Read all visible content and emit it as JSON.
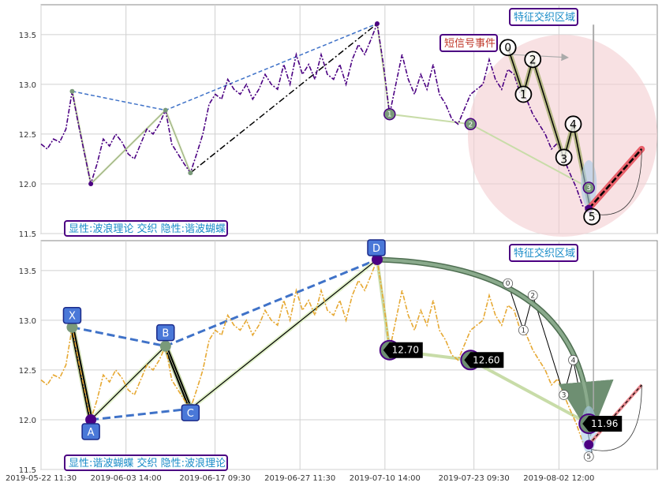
{
  "chart_data": {
    "type": "line",
    "x_tick_labels": [
      "2019-05-22 11:30",
      "2019-06-03 14:00",
      "2019-06-17 09:30",
      "2019-06-27 11:30",
      "2019-07-10 14:00",
      "2019-07-23 09:30",
      "2019-08-02 12:00"
    ],
    "ylim": [
      11.5,
      13.8
    ],
    "y_ticks": [
      "11.5",
      "12.0",
      "12.5",
      "13.0",
      "13.5"
    ],
    "grid": true,
    "panels": [
      {
        "caption": "显性:波浪理论 交织 隐性:谐波蝴蝶",
        "zone_label": "特征交织区域",
        "event_label": "短信号事件",
        "price_series": [
          [
            0,
            12.4
          ],
          [
            2,
            12.35
          ],
          [
            4,
            12.45
          ],
          [
            6,
            12.42
          ],
          [
            8,
            12.55
          ],
          [
            10,
            12.93
          ],
          [
            12,
            12.6
          ],
          [
            14,
            12.3
          ],
          [
            16,
            12.0
          ],
          [
            18,
            12.2
          ],
          [
            20,
            12.45
          ],
          [
            22,
            12.38
          ],
          [
            24,
            12.5
          ],
          [
            26,
            12.42
          ],
          [
            28,
            12.3
          ],
          [
            30,
            12.25
          ],
          [
            32,
            12.4
          ],
          [
            34,
            12.55
          ],
          [
            36,
            12.5
          ],
          [
            38,
            12.6
          ],
          [
            40,
            12.74
          ],
          [
            42,
            12.4
          ],
          [
            44,
            12.3
          ],
          [
            46,
            12.2
          ],
          [
            48,
            12.11
          ],
          [
            50,
            12.3
          ],
          [
            52,
            12.5
          ],
          [
            54,
            12.8
          ],
          [
            56,
            12.9
          ],
          [
            58,
            12.85
          ],
          [
            60,
            13.05
          ],
          [
            62,
            12.95
          ],
          [
            64,
            12.9
          ],
          [
            66,
            13.0
          ],
          [
            68,
            12.85
          ],
          [
            70,
            12.95
          ],
          [
            72,
            13.1
          ],
          [
            74,
            13.0
          ],
          [
            76,
            12.95
          ],
          [
            78,
            13.2
          ],
          [
            80,
            13.0
          ],
          [
            82,
            13.3
          ],
          [
            84,
            13.1
          ],
          [
            86,
            13.2
          ],
          [
            88,
            13.05
          ],
          [
            90,
            13.3
          ],
          [
            92,
            13.1
          ],
          [
            94,
            13.05
          ],
          [
            96,
            13.2
          ],
          [
            98,
            13.0
          ],
          [
            100,
            13.25
          ],
          [
            102,
            13.4
          ],
          [
            104,
            13.3
          ],
          [
            106,
            13.45
          ],
          [
            108,
            13.61
          ],
          [
            110,
            13.2
          ],
          [
            112,
            12.7
          ],
          [
            114,
            13.0
          ],
          [
            116,
            13.3
          ],
          [
            118,
            13.05
          ],
          [
            120,
            12.9
          ],
          [
            122,
            13.1
          ],
          [
            124,
            12.95
          ],
          [
            126,
            13.2
          ],
          [
            128,
            12.9
          ],
          [
            130,
            12.8
          ],
          [
            132,
            12.65
          ],
          [
            134,
            12.6
          ],
          [
            136,
            12.75
          ],
          [
            138,
            12.9
          ],
          [
            140,
            12.95
          ],
          [
            142,
            13.0
          ],
          [
            144,
            13.25
          ],
          [
            146,
            13.05
          ],
          [
            148,
            12.95
          ],
          [
            150,
            13.15
          ],
          [
            152,
            13.1
          ],
          [
            154,
            12.9
          ],
          [
            156,
            12.85
          ],
          [
            158,
            12.7
          ],
          [
            160,
            12.6
          ],
          [
            162,
            12.5
          ],
          [
            164,
            12.35
          ],
          [
            166,
            12.41
          ],
          [
            168,
            12.25
          ],
          [
            170,
            12.1
          ],
          [
            172,
            11.96
          ],
          [
            174,
            11.78
          ],
          [
            176,
            11.75
          ]
        ],
        "waves": [
          {
            "label": "0",
            "x": 150,
            "y": 13.37
          },
          {
            "label": "1",
            "x": 155,
            "y": 12.9
          },
          {
            "label": "2",
            "x": 158,
            "y": 13.25
          },
          {
            "label": "3",
            "x": 168,
            "y": 12.25
          },
          {
            "label": "4",
            "x": 171,
            "y": 12.6
          },
          {
            "label": "5",
            "x": 177,
            "y": 11.67
          }
        ],
        "butterfly_points": [
          {
            "name": "X",
            "x": 10,
            "y": 12.93
          },
          {
            "name": "A",
            "x": 16,
            "y": 12.0
          },
          {
            "name": "B",
            "x": 40,
            "y": 12.74
          },
          {
            "name": "C",
            "x": 48,
            "y": 12.11
          },
          {
            "name": "D",
            "x": 108,
            "y": 13.61
          }
        ],
        "projection_points": [
          {
            "label": "1",
            "x": 112,
            "y": 12.7
          },
          {
            "label": "2",
            "x": 138,
            "y": 12.6
          },
          {
            "label": "3",
            "x": 176,
            "y": 11.96
          }
        ]
      },
      {
        "caption": "显性:谐波蝴蝶 交织 隐性:波浪理论",
        "zone_label": "特征交织区域",
        "price_labels": [
          "12.70",
          "12.60",
          "11.96"
        ],
        "letters": [
          "X",
          "A",
          "B",
          "C",
          "D"
        ],
        "wave_labels": [
          "0",
          "1",
          "2",
          "3",
          "4",
          "5"
        ]
      }
    ]
  },
  "colors": {
    "upper_line": "#4b0082",
    "lower_line": "#e6a832",
    "blue_dashed": "#3f72c8",
    "zone": "#f2c4c8",
    "accent_green": "#7a9a7a",
    "highlight_red": "#e8606a"
  }
}
